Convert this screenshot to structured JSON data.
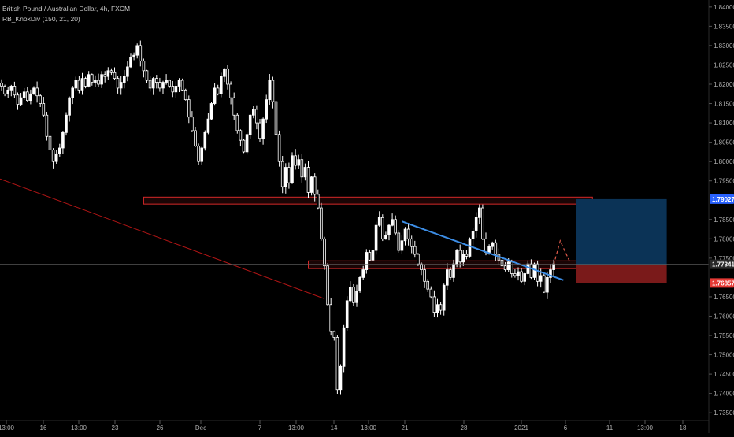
{
  "legend": {
    "symbol_line": "British Pound / Australian Dollar, 4h, FXCM",
    "indicator_line": "RB_KnoxDiv (150, 21, 20)"
  },
  "colors": {
    "background": "#000000",
    "candle": "#ffffff",
    "support_box": "#d62828",
    "trendline_blue": "#3d8ee6",
    "long_target": "#0b3356",
    "long_stop": "#7a1a1a",
    "crosshair": "#666666"
  },
  "chart_data": {
    "type": "candlestick",
    "symbol": "British Pound / Australian Dollar",
    "timeframe": "4h",
    "source": "FXCM",
    "ylim": [
      1.733,
      1.8418
    ],
    "y_ticks": [
      "1.84000",
      "1.83500",
      "1.83000",
      "1.82500",
      "1.82000",
      "1.81500",
      "1.81000",
      "1.80500",
      "1.80000",
      "1.79500",
      "1.78500",
      "1.78000",
      "1.77500",
      "1.76500",
      "1.76000",
      "1.75500",
      "1.75000",
      "1.74500",
      "1.74000",
      "1.73500"
    ],
    "x_ticks": [
      "13:00",
      "16",
      "13:00",
      "23",
      "26",
      "Dec",
      "7",
      "13:00",
      "14",
      "13:00",
      "21",
      "28",
      "2021",
      "6",
      "11",
      "13:00",
      "18"
    ],
    "price_labels": [
      {
        "text": "1.79027",
        "value": 1.79027,
        "color": "#2962ff"
      },
      {
        "text": "1.77341",
        "value": 1.77341,
        "color": "#2a2a2a"
      },
      {
        "text": "1.76857",
        "value": 1.76857,
        "color": "#e53935"
      }
    ],
    "closes": [
      1.8195,
      1.8175,
      1.8185,
      1.8195,
      1.8172,
      1.8148,
      1.8165,
      1.818,
      1.8158,
      1.8175,
      1.819,
      1.817,
      1.815,
      1.812,
      1.8065,
      1.803,
      1.8,
      1.802,
      1.8035,
      1.8075,
      1.812,
      1.8165,
      1.819,
      1.821,
      1.8185,
      1.8215,
      1.8195,
      1.8225,
      1.8205,
      1.821,
      1.82,
      1.8225,
      1.822,
      1.8235,
      1.823,
      1.8215,
      1.819,
      1.8205,
      1.822,
      1.8245,
      1.827,
      1.8275,
      1.83,
      1.826,
      1.8235,
      1.821,
      1.819,
      1.8215,
      1.8205,
      1.819,
      1.8205,
      1.821,
      1.8195,
      1.818,
      1.8195,
      1.821,
      1.8185,
      1.816,
      1.8115,
      1.808,
      1.804,
      1.8,
      1.8035,
      1.8075,
      1.811,
      1.815,
      1.819,
      1.8175,
      1.822,
      1.824,
      1.82,
      1.8165,
      1.812,
      1.808,
      1.8055,
      1.8025,
      1.807,
      1.812,
      1.8135,
      1.81,
      1.806,
      1.811,
      1.816,
      1.821,
      1.8155,
      1.807,
      1.8,
      1.7935,
      1.7985,
      1.7945,
      1.8015,
      1.799,
      1.8005,
      1.796,
      1.7985,
      1.792,
      1.796,
      1.7915,
      1.788,
      1.78,
      1.773,
      1.763,
      1.756,
      1.7545,
      1.741,
      1.747,
      1.757,
      1.764,
      1.7675,
      1.7635,
      1.7665,
      1.77,
      1.772,
      1.7765,
      1.7745,
      1.777,
      1.7835,
      1.7855,
      1.78,
      1.781,
      1.7835,
      1.785,
      1.7815,
      1.777,
      1.7795,
      1.7825,
      1.78,
      1.778,
      1.776,
      1.7735,
      1.772,
      1.769,
      1.767,
      1.765,
      1.761,
      1.763,
      1.7615,
      1.768,
      1.772,
      1.77,
      1.7735,
      1.777,
      1.774,
      1.776,
      1.7755,
      1.78,
      1.782,
      1.7855,
      1.788,
      1.78,
      1.7765,
      1.778,
      1.779,
      1.776,
      1.7745,
      1.773,
      1.772,
      1.774,
      1.771,
      1.7705,
      1.7715,
      1.769,
      1.771,
      1.7735,
      1.77,
      1.7735,
      1.769,
      1.7705,
      1.7662,
      1.77,
      1.772,
      1.7735
    ]
  },
  "annotations": {
    "resistance_box": {
      "top": 1.7908,
      "bottom": 1.789,
      "from_index": 44,
      "to_extra_bars": 12
    },
    "support_box": {
      "top": 1.7743,
      "bottom": 1.7723,
      "from_index": 95,
      "to_extra_bars": 12
    },
    "trendline": {
      "from_index": 124,
      "from_price": 1.7845,
      "to_extra_bars": 3,
      "to_price": 1.7693
    },
    "projection": {
      "points": [
        [
          0,
          1.7733
        ],
        [
          2,
          1.7795
        ],
        [
          5,
          1.774
        ]
      ]
    },
    "position": {
      "entry": 1.77341,
      "target": 1.79027,
      "stop": 1.76857,
      "from_extra_bars": 7,
      "to_extra_bars": 35
    }
  }
}
